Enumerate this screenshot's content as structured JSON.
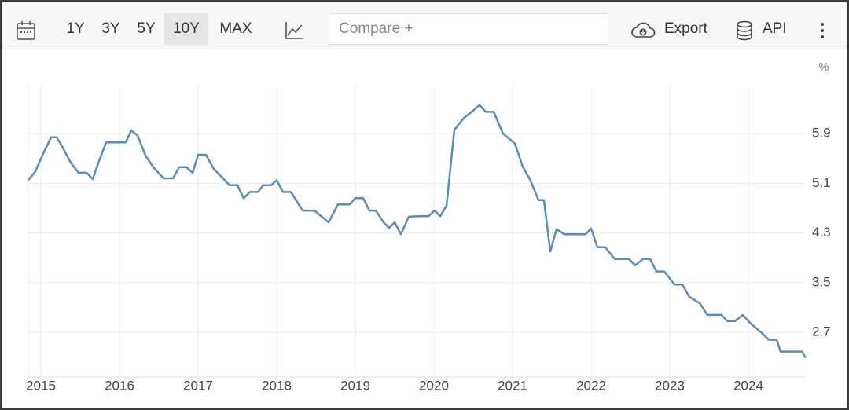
{
  "toolbar": {
    "ranges": [
      "1Y",
      "3Y",
      "5Y",
      "10Y",
      "MAX"
    ],
    "compare": "Compare +",
    "export": "Export",
    "api": "API"
  },
  "chart_data": {
    "type": "line",
    "unit": "%",
    "x": [
      2014.84,
      2014.93,
      2015.03,
      2015.13,
      2015.2,
      2015.28,
      2015.38,
      2015.48,
      2015.58,
      2015.66,
      2015.74,
      2015.83,
      2016.08,
      2016.15,
      2016.23,
      2016.33,
      2016.43,
      2016.56,
      2016.68,
      2016.76,
      2016.85,
      2016.93,
      2017.0,
      2017.1,
      2017.2,
      2017.3,
      2017.4,
      2017.5,
      2017.58,
      2017.66,
      2017.76,
      2017.83,
      2017.93,
      2018.0,
      2018.08,
      2018.18,
      2018.33,
      2018.48,
      2018.66,
      2018.78,
      2018.93,
      2019.0,
      2019.1,
      2019.18,
      2019.26,
      2019.36,
      2019.43,
      2019.5,
      2019.58,
      2019.68,
      2019.78,
      2019.93,
      2020.01,
      2020.08,
      2020.16,
      2020.26,
      2020.38,
      2020.48,
      2020.58,
      2020.66,
      2020.76,
      2020.88,
      2021.03,
      2021.13,
      2021.23,
      2021.33,
      2021.4,
      2021.48,
      2021.56,
      2021.66,
      2021.93,
      2022.0,
      2022.08,
      2022.18,
      2022.3,
      2022.48,
      2022.56,
      2022.66,
      2022.75,
      2022.83,
      2022.93,
      2023.06,
      2023.16,
      2023.25,
      2023.38,
      2023.48,
      2023.66,
      2023.73,
      2023.83,
      2023.93,
      2024.03,
      2024.18,
      2024.26,
      2024.36,
      2024.41,
      2024.68,
      2024.73
    ],
    "series": [
      {
        "color": "#5b8bb8",
        "values": [
          5.15,
          5.29,
          5.58,
          5.84,
          5.84,
          5.67,
          5.43,
          5.27,
          5.27,
          5.17,
          5.46,
          5.76,
          5.76,
          5.95,
          5.87,
          5.55,
          5.36,
          5.18,
          5.18,
          5.36,
          5.36,
          5.27,
          5.56,
          5.56,
          5.33,
          5.2,
          5.07,
          5.07,
          4.86,
          4.96,
          4.96,
          5.07,
          5.07,
          5.15,
          4.96,
          4.96,
          4.66,
          4.66,
          4.47,
          4.76,
          4.76,
          4.86,
          4.86,
          4.66,
          4.66,
          4.47,
          4.38,
          4.47,
          4.28,
          4.56,
          4.57,
          4.57,
          4.66,
          4.57,
          4.74,
          5.96,
          6.15,
          6.25,
          6.36,
          6.25,
          6.25,
          5.9,
          5.74,
          5.37,
          5.14,
          4.83,
          4.83,
          4.0,
          4.36,
          4.28,
          4.28,
          4.37,
          4.07,
          4.07,
          3.88,
          3.88,
          3.78,
          3.88,
          3.88,
          3.68,
          3.68,
          3.47,
          3.47,
          3.27,
          3.17,
          2.98,
          2.98,
          2.88,
          2.88,
          2.98,
          2.84,
          2.68,
          2.58,
          2.58,
          2.39,
          2.39,
          2.29
        ]
      }
    ],
    "xlim": [
      2014.84,
      2024.73
    ],
    "xticks": [
      2015,
      2016,
      2017,
      2018,
      2019,
      2020,
      2021,
      2022,
      2023,
      2024
    ],
    "ylim": [
      1.98,
      6.66
    ],
    "yticks": [
      2.7,
      3.5,
      4.3,
      5.1,
      5.9
    ],
    "grid": true
  }
}
